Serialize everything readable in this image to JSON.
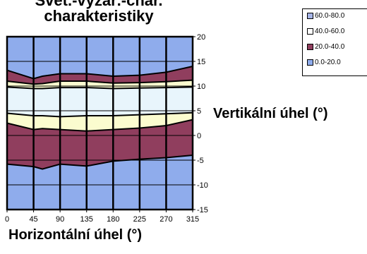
{
  "chart_data": {
    "type": "area",
    "title_lines": [
      "Svět.-vyzař.-char.",
      "charakteristiky"
    ],
    "xlabel": "Horizontální úhel (°)",
    "ylabel": "Vertikální úhel (°)",
    "x_ticks": [
      "0",
      "45",
      "90",
      "135",
      "180",
      "225",
      "270",
      "315"
    ],
    "y_ticks": [
      "20",
      "15",
      "10",
      "5",
      "0",
      "-5",
      "-10",
      "-15"
    ],
    "x_domain": [
      0,
      315
    ],
    "ylim": [
      -15,
      20
    ],
    "grid": true,
    "legend_position": "top-right",
    "legend": [
      {
        "label": "60.0-80.0",
        "color": "#a6b4e6"
      },
      {
        "label": "40.0-60.0",
        "color": "#ffffff"
      },
      {
        "label": "20.0-40.0",
        "color": "#903e5e"
      },
      {
        "label": "0.0-20.0",
        "color": "#8facec"
      }
    ],
    "band_colors": {
      "0.0-20.0": "#8facec",
      "20.0-40.0": "#903e5e",
      "40.0-60.0": "#fbfccf",
      "40.0-60.0 legend": "#ffffff",
      "60.0-80.0": "#e8f5fc"
    },
    "x": [
      0,
      45,
      60,
      90,
      135,
      180,
      225,
      270,
      315
    ],
    "contours": {
      "upper_20": [
        13.2,
        11.5,
        12.0,
        12.5,
        12.5,
        12.0,
        12.2,
        12.8,
        14.0
      ],
      "upper_40": [
        11.0,
        10.4,
        10.5,
        11.0,
        11.0,
        10.6,
        10.7,
        10.9,
        11.2
      ],
      "upper_60": [
        9.8,
        9.5,
        9.5,
        9.7,
        9.7,
        9.5,
        9.6,
        9.7,
        9.8
      ],
      "lower_60": [
        4.5,
        4.0,
        4.0,
        3.8,
        4.0,
        4.0,
        4.2,
        4.4,
        4.6
      ],
      "lower_40": [
        2.5,
        1.2,
        1.4,
        1.2,
        0.9,
        1.2,
        1.5,
        2.0,
        3.2
      ],
      "lower_20": [
        -5.8,
        -6.3,
        -6.8,
        -5.8,
        -6.2,
        -5.2,
        -4.8,
        -4.5,
        -4.0
      ]
    }
  }
}
